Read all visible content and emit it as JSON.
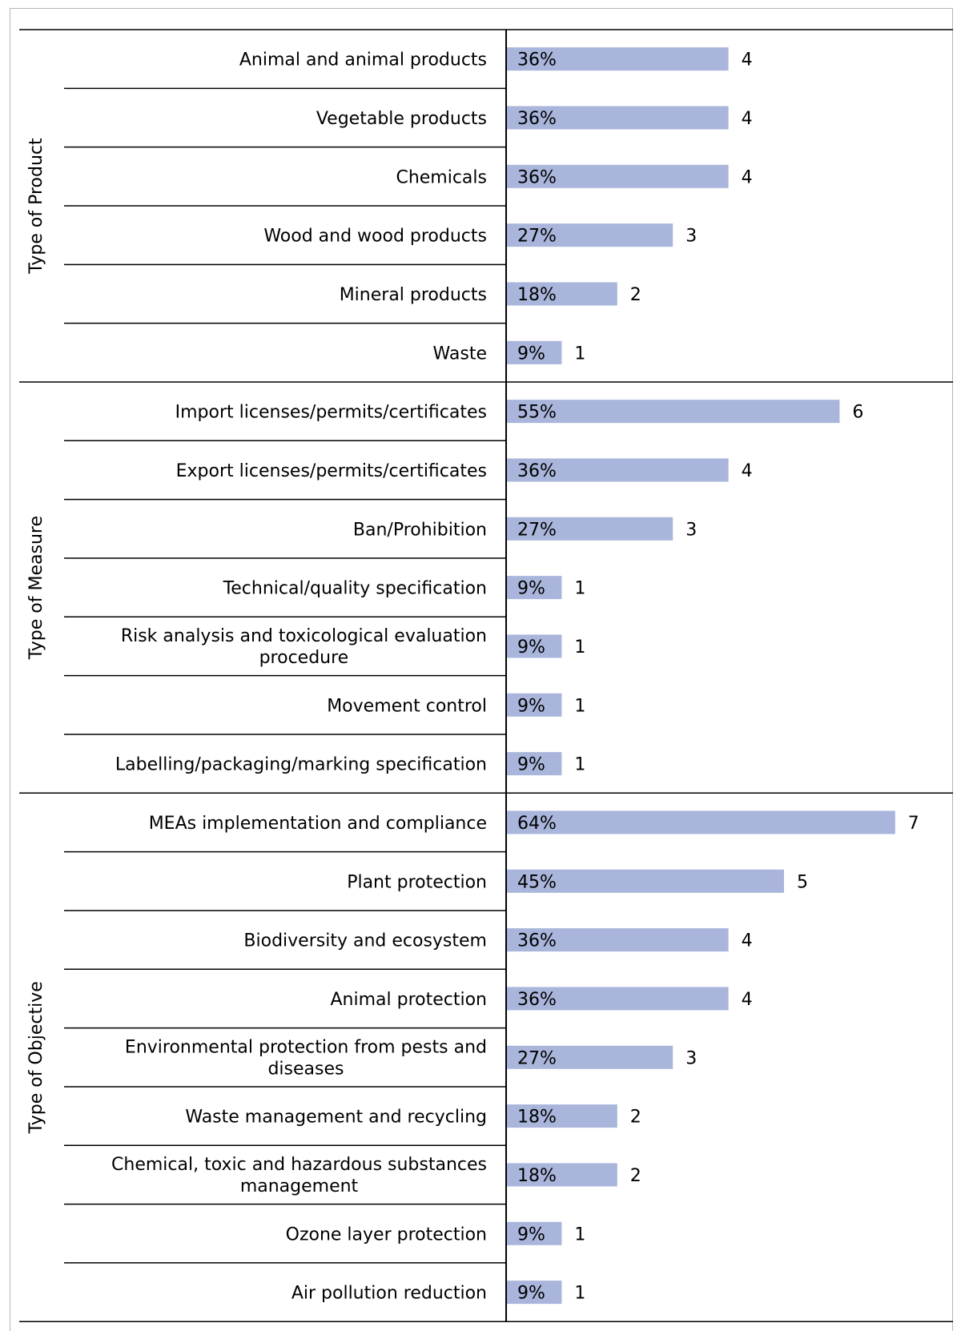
{
  "colors": {
    "bar": "#a9b5db",
    "line": "#000000",
    "frame": "#b5b5b5"
  },
  "chart_data": {
    "type": "bar",
    "orientation": "horizontal",
    "groups": [
      {
        "name": "Type of Product",
        "rows": [
          {
            "label": [
              "Animal and animal products"
            ],
            "percent": "36%",
            "value": 4
          },
          {
            "label": [
              "Vegetable products"
            ],
            "percent": "36%",
            "value": 4
          },
          {
            "label": [
              "Chemicals"
            ],
            "percent": "36%",
            "value": 4
          },
          {
            "label": [
              "Wood and wood products"
            ],
            "percent": "27%",
            "value": 3
          },
          {
            "label": [
              "Mineral products"
            ],
            "percent": "18%",
            "value": 2
          },
          {
            "label": [
              "Waste"
            ],
            "percent": "9%",
            "value": 1
          }
        ]
      },
      {
        "name": "Type of Measure",
        "rows": [
          {
            "label": [
              "Import licenses/permits/certificates"
            ],
            "percent": "55%",
            "value": 6
          },
          {
            "label": [
              "Export licenses/permits/certificates"
            ],
            "percent": "36%",
            "value": 4
          },
          {
            "label": [
              "Ban/Prohibition"
            ],
            "percent": "27%",
            "value": 3
          },
          {
            "label": [
              "Technical/quality specification"
            ],
            "percent": "9%",
            "value": 1
          },
          {
            "label": [
              "Risk analysis and toxicological evaluation",
              "procedure"
            ],
            "percent": "9%",
            "value": 1
          },
          {
            "label": [
              "Movement control"
            ],
            "percent": "9%",
            "value": 1
          },
          {
            "label": [
              "Labelling/packaging/marking specification"
            ],
            "percent": "9%",
            "value": 1
          }
        ]
      },
      {
        "name": "Type of Objective",
        "rows": [
          {
            "label": [
              "MEAs implementation and compliance"
            ],
            "percent": "64%",
            "value": 7
          },
          {
            "label": [
              "Plant protection"
            ],
            "percent": "45%",
            "value": 5
          },
          {
            "label": [
              "Biodiversity and ecosystem"
            ],
            "percent": "36%",
            "value": 4
          },
          {
            "label": [
              "Animal protection"
            ],
            "percent": "36%",
            "value": 4
          },
          {
            "label": [
              "Environmental protection from pests and",
              "diseases"
            ],
            "percent": "27%",
            "value": 3
          },
          {
            "label": [
              "Waste management and recycling"
            ],
            "percent": "18%",
            "value": 2
          },
          {
            "label": [
              "Chemical, toxic and hazardous substances",
              "management"
            ],
            "percent": "18%",
            "value": 2
          },
          {
            "label": [
              "Ozone layer protection"
            ],
            "percent": "9%",
            "value": 1
          },
          {
            "label": [
              "Air pollution reduction"
            ],
            "percent": "9%",
            "value": 1
          }
        ]
      }
    ]
  }
}
